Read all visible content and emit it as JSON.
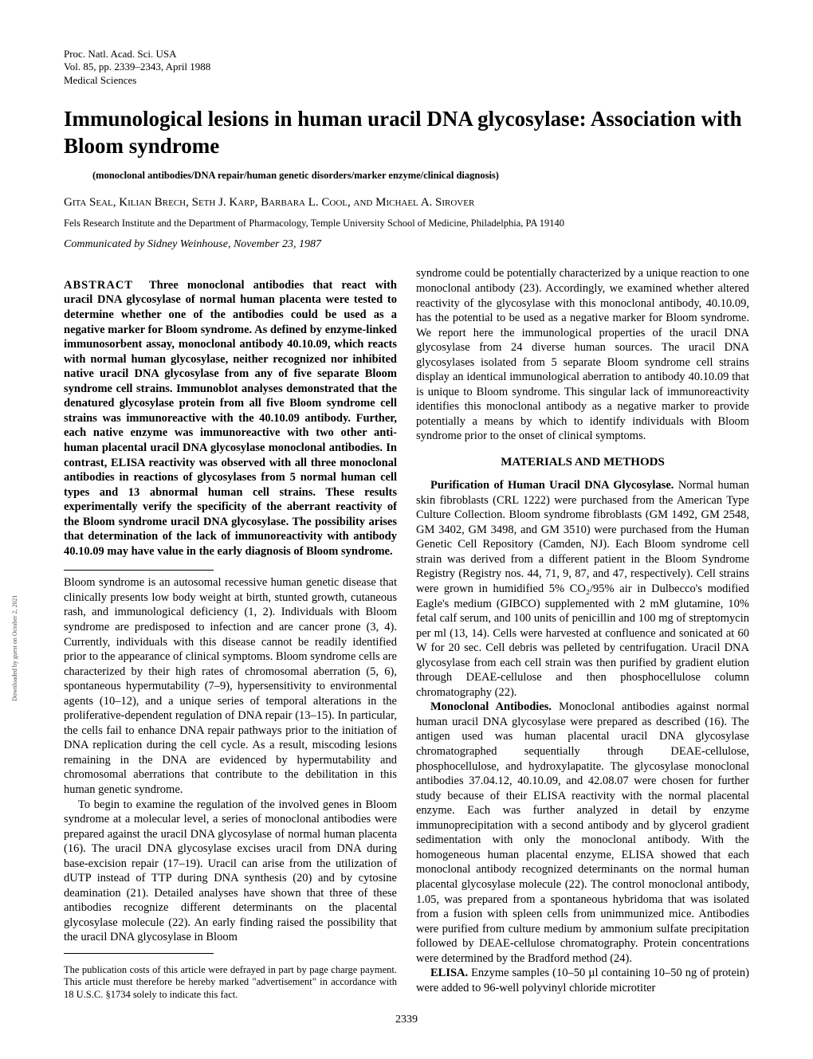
{
  "header": {
    "journal": "Proc. Natl. Acad. Sci. USA",
    "volume_line": "Vol. 85, pp. 2339–2343, April 1988",
    "section": "Medical Sciences"
  },
  "title": "Immunological lesions in human uracil DNA glycosylase: Association with Bloom syndrome",
  "keywords": "(monoclonal antibodies/DNA repair/human genetic disorders/marker enzyme/clinical diagnosis)",
  "authors": "Gita Seal, Kilian Brech, Seth J. Karp, Barbara L. Cool, and Michael A. Sirover",
  "affiliation": "Fels Research Institute and the Department of Pharmacology, Temple University School of Medicine, Philadelphia, PA 19140",
  "communicated": "Communicated by Sidney Weinhouse, November 23, 1987",
  "abstract_label": "ABSTRACT",
  "abstract": "Three monoclonal antibodies that react with uracil DNA glycosylase of normal human placenta were tested to determine whether one of the antibodies could be used as a negative marker for Bloom syndrome. As defined by enzyme-linked immunosorbent assay, monoclonal antibody 40.10.09, which reacts with normal human glycosylase, neither recognized nor inhibited native uracil DNA glycosylase from any of five separate Bloom syndrome cell strains. Immunoblot analyses demonstrated that the denatured glycosylase protein from all five Bloom syndrome cell strains was immunoreactive with the 40.10.09 antibody. Further, each native enzyme was immunoreactive with two other anti-human placental uracil DNA glycosylase monoclonal antibodies. In contrast, ELISA reactivity was observed with all three monoclonal antibodies in reactions of glycosylases from 5 normal human cell types and 13 abnormal human cell strains. These results experimentally verify the specificity of the aberrant reactivity of the Bloom syndrome uracil DNA glycosylase. The possibility arises that determination of the lack of immunoreactivity with antibody 40.10.09 may have value in the early diagnosis of Bloom syndrome.",
  "intro_p1": "Bloom syndrome is an autosomal recessive human genetic disease that clinically presents low body weight at birth, stunted growth, cutaneous rash, and immunological deficiency (1, 2). Individuals with Bloom syndrome are predisposed to infection and are cancer prone (3, 4). Currently, individuals with this disease cannot be readily identified prior to the appearance of clinical symptoms. Bloom syndrome cells are characterized by their high rates of chromosomal aberration (5, 6), spontaneous hypermutability (7–9), hypersensitivity to environmental agents (10–12), and a unique series of temporal alterations in the proliferative-dependent regulation of DNA repair (13–15). In particular, the cells fail to enhance DNA repair pathways prior to the initiation of DNA replication during the cell cycle. As a result, miscoding lesions remaining in the DNA are evidenced by hypermutability and chromosomal aberrations that contribute to the debilitation in this human genetic syndrome.",
  "intro_p2": "To begin to examine the regulation of the involved genes in Bloom syndrome at a molecular level, a series of monoclonal antibodies were prepared against the uracil DNA glycosylase of normal human placenta (16). The uracil DNA glycosylase excises uracil from DNA during base-excision repair (17–19). Uracil can arise from the utilization of dUTP instead of TTP during DNA synthesis (20) and by cytosine deamination (21). Detailed analyses have shown that three of these antibodies recognize different determinants on the placental glycosylase molecule (22). An early finding raised the possibility that the uracil DNA glycosylase in Bloom",
  "col2_p1": "syndrome could be potentially characterized by a unique reaction to one monoclonal antibody (23). Accordingly, we examined whether altered reactivity of the glycosylase with this monoclonal antibody, 40.10.09, has the potential to be used as a negative marker for Bloom syndrome. We report here the immunological properties of the uracil DNA glycosylase from 24 diverse human sources. The uracil DNA glycosylases isolated from 5 separate Bloom syndrome cell strains display an identical immunological aberration to antibody 40.10.09 that is unique to Bloom syndrome. This singular lack of immunoreactivity identifies this monoclonal antibody as a negative marker to provide potentially a means by which to identify individuals with Bloom syndrome prior to the onset of clinical symptoms.",
  "materials_heading": "MATERIALS AND METHODS",
  "mm_purif_label": "Purification of Human Uracil DNA Glycosylase.",
  "mm_purif": " Normal human skin fibroblasts (CRL 1222) were purchased from the American Type Culture Collection. Bloom syndrome fibroblasts (GM 1492, GM 2548, GM 3402, GM 3498, and GM 3510) were purchased from the Human Genetic Cell Repository (Camden, NJ). Each Bloom syndrome cell strain was derived from a different patient in the Bloom Syndrome Registry (Registry nos. 44, 71, 9, 87, and 47, respectively). Cell strains were grown in humidified 5% CO₂/95% air in Dulbecco's modified Eagle's medium (GIBCO) supplemented with 2 mM glutamine, 10% fetal calf serum, and 100 units of penicillin and 100 mg of streptomycin per ml (13, 14). Cells were harvested at confluence and sonicated at 60 W for 20 sec. Cell debris was pelleted by centrifugation. Uracil DNA glycosylase from each cell strain was then purified by gradient elution through DEAE-cellulose and then phosphocellulose column chromatography (22).",
  "mm_mono_label": "Monoclonal Antibodies.",
  "mm_mono": " Monoclonal antibodies against normal human uracil DNA glycosylase were prepared as described (16). The antigen used was human placental uracil DNA glycosylase chromatographed sequentially through DEAE-cellulose, phosphocellulose, and hydroxylapatite. The glycosylase monoclonal antibodies 37.04.12, 40.10.09, and 42.08.07 were chosen for further study because of their ELISA reactivity with the normal placental enzyme. Each was further analyzed in detail by enzyme immunoprecipitation with a second antibody and by glycerol gradient sedimentation with only the monoclonal antibody. With the homogeneous human placental enzyme, ELISA showed that each monoclonal antibody recognized determinants on the normal human placental glycosylase molecule (22). The control monoclonal antibody, 1.05, was prepared from a spontaneous hybridoma that was isolated from a fusion with spleen cells from unimmunized mice. Antibodies were purified from culture medium by ammonium sulfate precipitation followed by DEAE-cellulose chromatography. Protein concentrations were determined by the Bradford method (24).",
  "mm_elisa_label": "ELISA.",
  "mm_elisa": " Enzyme samples (10–50 µl containing 10–50 ng of protein) were added to 96-well polyvinyl chloride microtiter",
  "footnote": "The publication costs of this article were defrayed in part by page charge payment. This article must therefore be hereby marked \"advertisement\" in accordance with 18 U.S.C. §1734 solely to indicate this fact.",
  "pagenum": "2339",
  "sidetext": "Downloaded by guest on October 2, 2021"
}
